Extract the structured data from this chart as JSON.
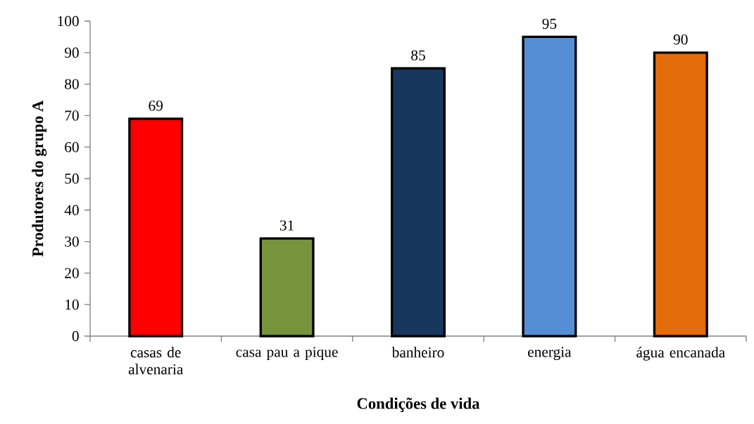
{
  "chart_data": {
    "type": "bar",
    "xlabel": "Condições de vida",
    "ylabel": "Produtores do grupo A",
    "categories": [
      "casas de alvenaria",
      "casa pau a pique",
      "banheiro",
      "energia",
      "água encanada"
    ],
    "values": [
      69,
      31,
      85,
      95,
      90
    ],
    "colors": [
      "#ff0000",
      "#77933c",
      "#17375e",
      "#558ed5",
      "#e46c0a"
    ],
    "ylim": [
      0,
      100
    ],
    "yticks": [
      0,
      10,
      20,
      30,
      40,
      50,
      60,
      70,
      80,
      90,
      100
    ],
    "data_labels": true,
    "grid": false
  }
}
